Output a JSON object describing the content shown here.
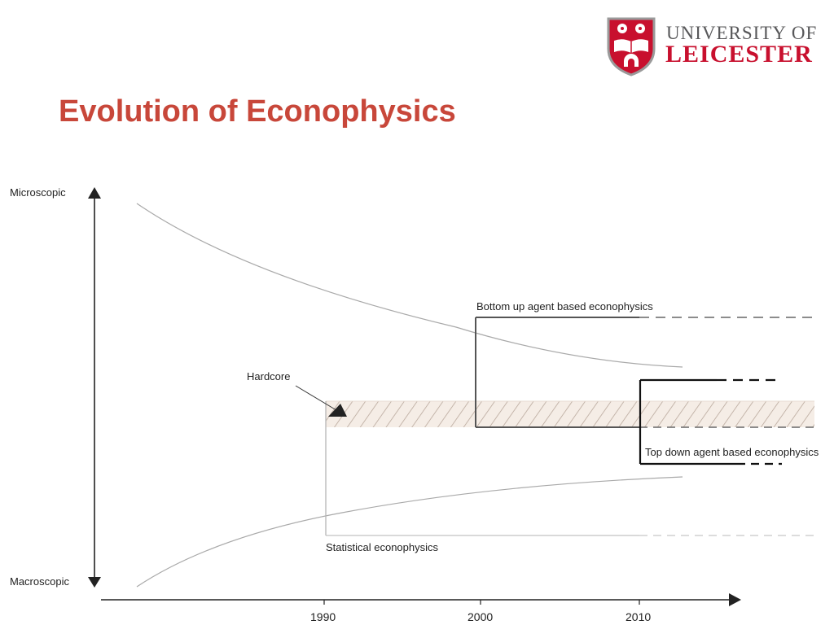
{
  "slide": {
    "title": "Evolution of Econophysics"
  },
  "logo": {
    "line1": "UNIVERSITY OF",
    "line2": "LEICESTER"
  },
  "colors": {
    "title": "#c8473a",
    "logo_red": "#c8102e",
    "logo_grey": "#58585a",
    "band_fill": "#f5ede6"
  },
  "axes": {
    "y_top_label": "Microscopic",
    "y_bottom_label": "Macroscopic",
    "x_ticks": [
      "1990",
      "2000",
      "2010"
    ]
  },
  "labels": {
    "hardcore": "Hardcore",
    "bottom_up": "Bottom up agent based econophysics",
    "top_down": "Top down agent based econophysics",
    "statistical": "Statistical econophysics"
  }
}
